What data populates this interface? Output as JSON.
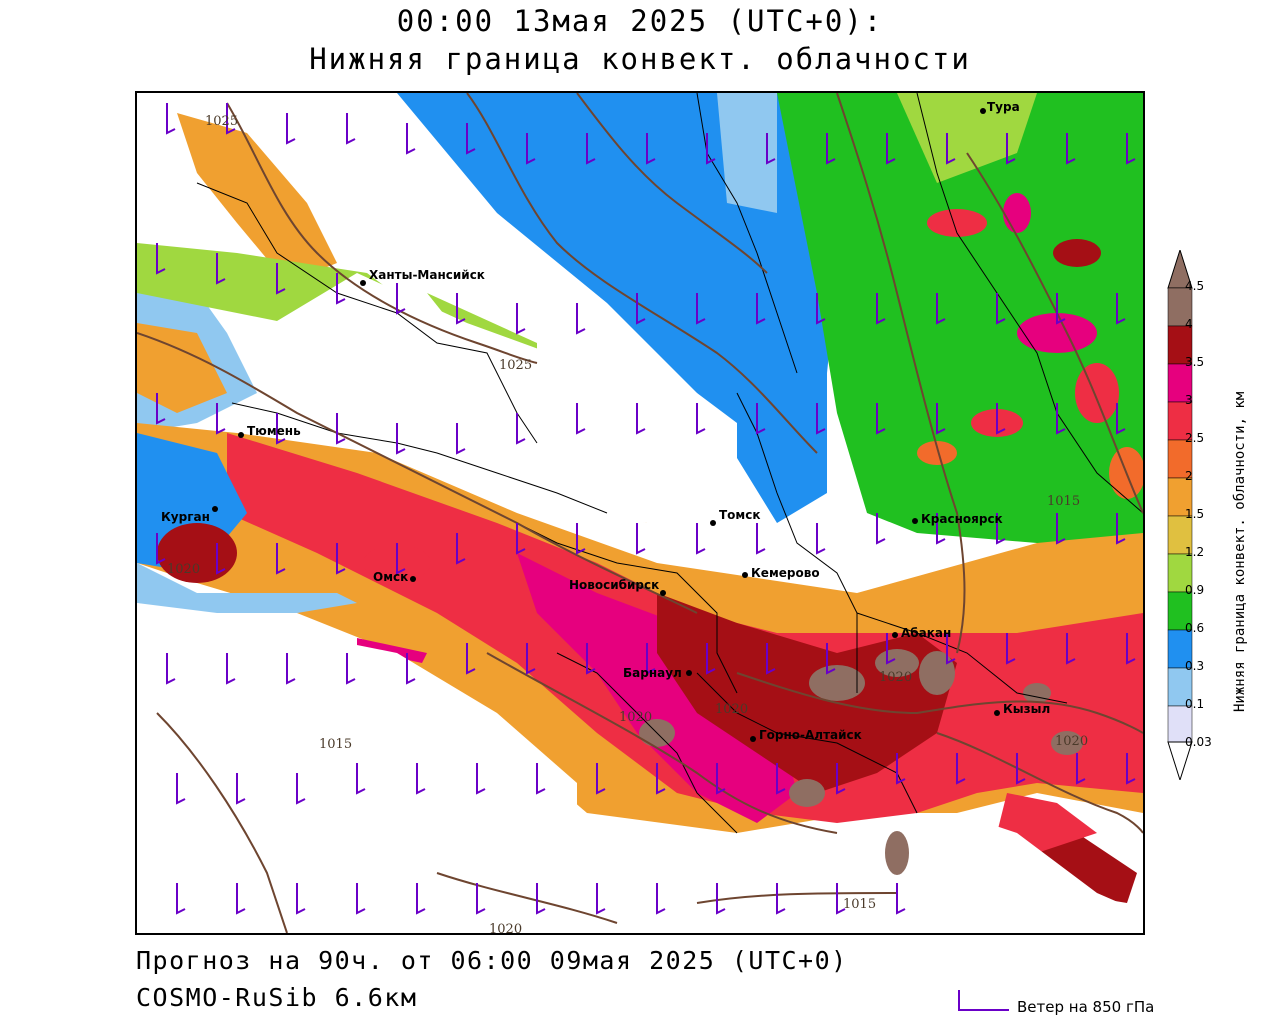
{
  "header": {
    "title_line1": "00:00 13мая 2025 (UTC+0):",
    "title_line2": "Нижняя граница конвект. облачности"
  },
  "map": {
    "cities": [
      {
        "name": "Тура"
      },
      {
        "name": "Ханты-Мансийск"
      },
      {
        "name": "Тюмень"
      },
      {
        "name": "Курган"
      },
      {
        "name": "Омск"
      },
      {
        "name": "Новосибирск"
      },
      {
        "name": "Томск"
      },
      {
        "name": "Кемерово"
      },
      {
        "name": "Красноярск"
      },
      {
        "name": "Абакан"
      },
      {
        "name": "Барнаул"
      },
      {
        "name": "Горно-Алтайск"
      },
      {
        "name": "Кызыл"
      }
    ],
    "isobar_labels": [
      "1025",
      "1025",
      "1015",
      "1020",
      "1020",
      "1020",
      "1020",
      "1020",
      "1015",
      "1015",
      "1020"
    ]
  },
  "colorbar": {
    "label": "Нижняя граница конвект. облачности, км",
    "ticks": [
      "4.5",
      "4",
      "3.5",
      "3",
      "2.5",
      "2",
      "1.5",
      "1.2",
      "0.9",
      "0.6",
      "0.3",
      "0.1",
      "0.03"
    ],
    "colors": [
      "#8f6e62",
      "#a50f15",
      "#e6007e",
      "#ee2e44",
      "#f26b2b",
      "#f0a030",
      "#e0c040",
      "#f0f070",
      "#a0d840",
      "#20c020",
      "#2090f0",
      "#90c8f0",
      "#e0e0f8",
      "#ffffff"
    ]
  },
  "footer": {
    "forecast": "Прогноз на 90ч. от 06:00 09мая 2025 (UTC+0)",
    "model": "COSMO-RuSib 6.6км",
    "wind_legend": "Ветер на 850 гПа"
  }
}
